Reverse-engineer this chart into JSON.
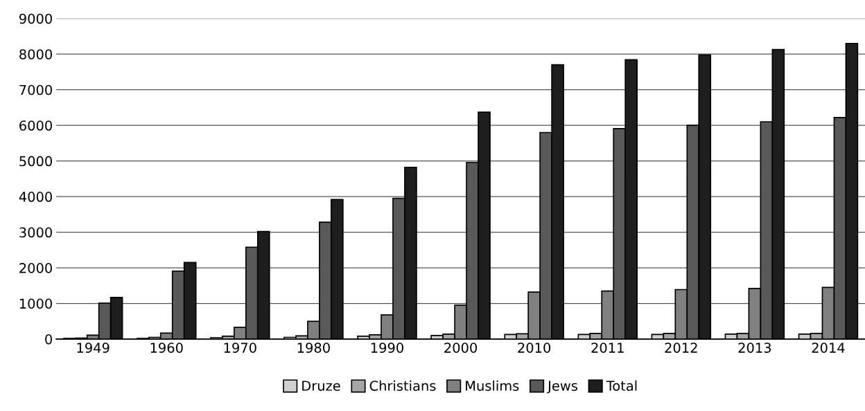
{
  "chart_data": {
    "type": "bar",
    "categories": [
      "1949",
      "1960",
      "1970",
      "1980",
      "1990",
      "2000",
      "2010",
      "2011",
      "2012",
      "2013",
      "2014"
    ],
    "series": [
      {
        "name": "Druze",
        "color": "#d0d0d0",
        "values": [
          20,
          20,
          40,
          50,
          80,
          100,
          130,
          130,
          130,
          140,
          140
        ]
      },
      {
        "name": "Christians",
        "color": "#a6a6a6",
        "values": [
          30,
          50,
          80,
          90,
          120,
          140,
          150,
          160,
          160,
          160,
          160
        ]
      },
      {
        "name": "Muslims",
        "color": "#808080",
        "values": [
          110,
          170,
          330,
          500,
          680,
          950,
          1320,
          1350,
          1390,
          1420,
          1450
        ]
      },
      {
        "name": "Jews",
        "color": "#595959",
        "values": [
          1010,
          1910,
          2580,
          3280,
          3950,
          4960,
          5800,
          5910,
          6000,
          6100,
          6220
        ]
      },
      {
        "name": "Total",
        "color": "#1e1e1e",
        "values": [
          1170,
          2150,
          3020,
          3920,
          4820,
          6370,
          7700,
          7840,
          7980,
          8130,
          8300
        ]
      }
    ],
    "ylim": [
      0,
      9000
    ],
    "yticks": [
      0,
      1000,
      2000,
      3000,
      4000,
      5000,
      6000,
      7000,
      8000,
      9000
    ],
    "grid": "y",
    "legend": "bottom"
  }
}
